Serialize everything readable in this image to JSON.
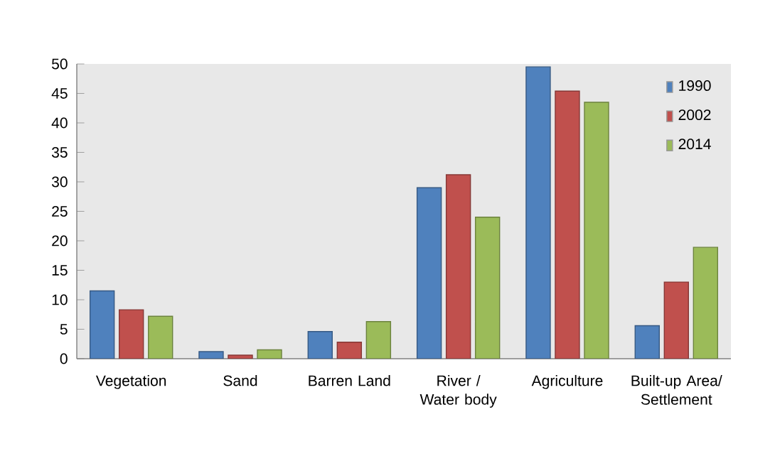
{
  "chart_data": {
    "type": "bar",
    "categories": [
      "Vegetation",
      "Sand",
      "Barren Land",
      "River / Water body",
      "Agriculture",
      "Built-up Area/ Settlement"
    ],
    "series": [
      {
        "name": "1990",
        "color": "#4f81bd",
        "values": [
          11.5,
          1.2,
          4.6,
          29,
          49.5,
          5.6
        ]
      },
      {
        "name": "2002",
        "color": "#c0504d",
        "values": [
          8.3,
          0.6,
          2.8,
          31.2,
          45.4,
          13
        ]
      },
      {
        "name": "2014",
        "color": "#9bbb59",
        "values": [
          7.2,
          1.5,
          6.3,
          24,
          43.5,
          18.9
        ]
      }
    ],
    "ylim": [
      0,
      50
    ],
    "yticks": [
      0,
      5,
      10,
      15,
      20,
      25,
      30,
      35,
      40,
      45,
      50
    ],
    "legend": "top right",
    "grid": false
  }
}
